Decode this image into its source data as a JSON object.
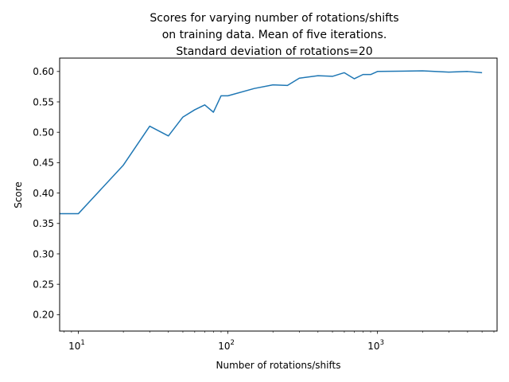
{
  "chart_data": {
    "type": "line",
    "title": [
      "Scores for varying number of rotations/shifts",
      "on training data. Mean of five iterations.",
      "Standard deviation of rotations=20"
    ],
    "xlabel": "Number of rotations/shifts",
    "ylabel": "Score",
    "xscale": "log",
    "xlim": [
      7.5,
      6300
    ],
    "ylim": [
      0.173,
      0.622
    ],
    "xticks": [
      {
        "value": 10,
        "base": "10",
        "exp": "1"
      },
      {
        "value": 100,
        "base": "10",
        "exp": "2"
      },
      {
        "value": 1000,
        "base": "10",
        "exp": "3"
      }
    ],
    "yticks": [
      0.2,
      0.25,
      0.3,
      0.35,
      0.4,
      0.45,
      0.5,
      0.55,
      0.6
    ],
    "ytick_labels": [
      "0.20",
      "0.25",
      "0.30",
      "0.35",
      "0.40",
      "0.45",
      "0.50",
      "0.55",
      "0.60"
    ],
    "grid": false,
    "line_color": "#1f77b4",
    "series": [
      {
        "x": [
          5,
          10,
          20,
          30,
          40,
          50,
          60,
          70,
          80,
          90,
          100,
          150,
          200,
          250,
          300,
          400,
          500,
          600,
          700,
          800,
          900,
          1000,
          2000,
          3000,
          4000,
          5000
        ],
        "y": [
          0.366,
          0.366,
          0.446,
          0.51,
          0.494,
          0.525,
          0.537,
          0.545,
          0.533,
          0.56,
          0.56,
          0.572,
          0.578,
          0.577,
          0.589,
          0.593,
          0.592,
          0.598,
          0.588,
          0.595,
          0.595,
          0.6,
          0.601,
          0.599,
          0.6,
          0.598
        ]
      }
    ]
  }
}
